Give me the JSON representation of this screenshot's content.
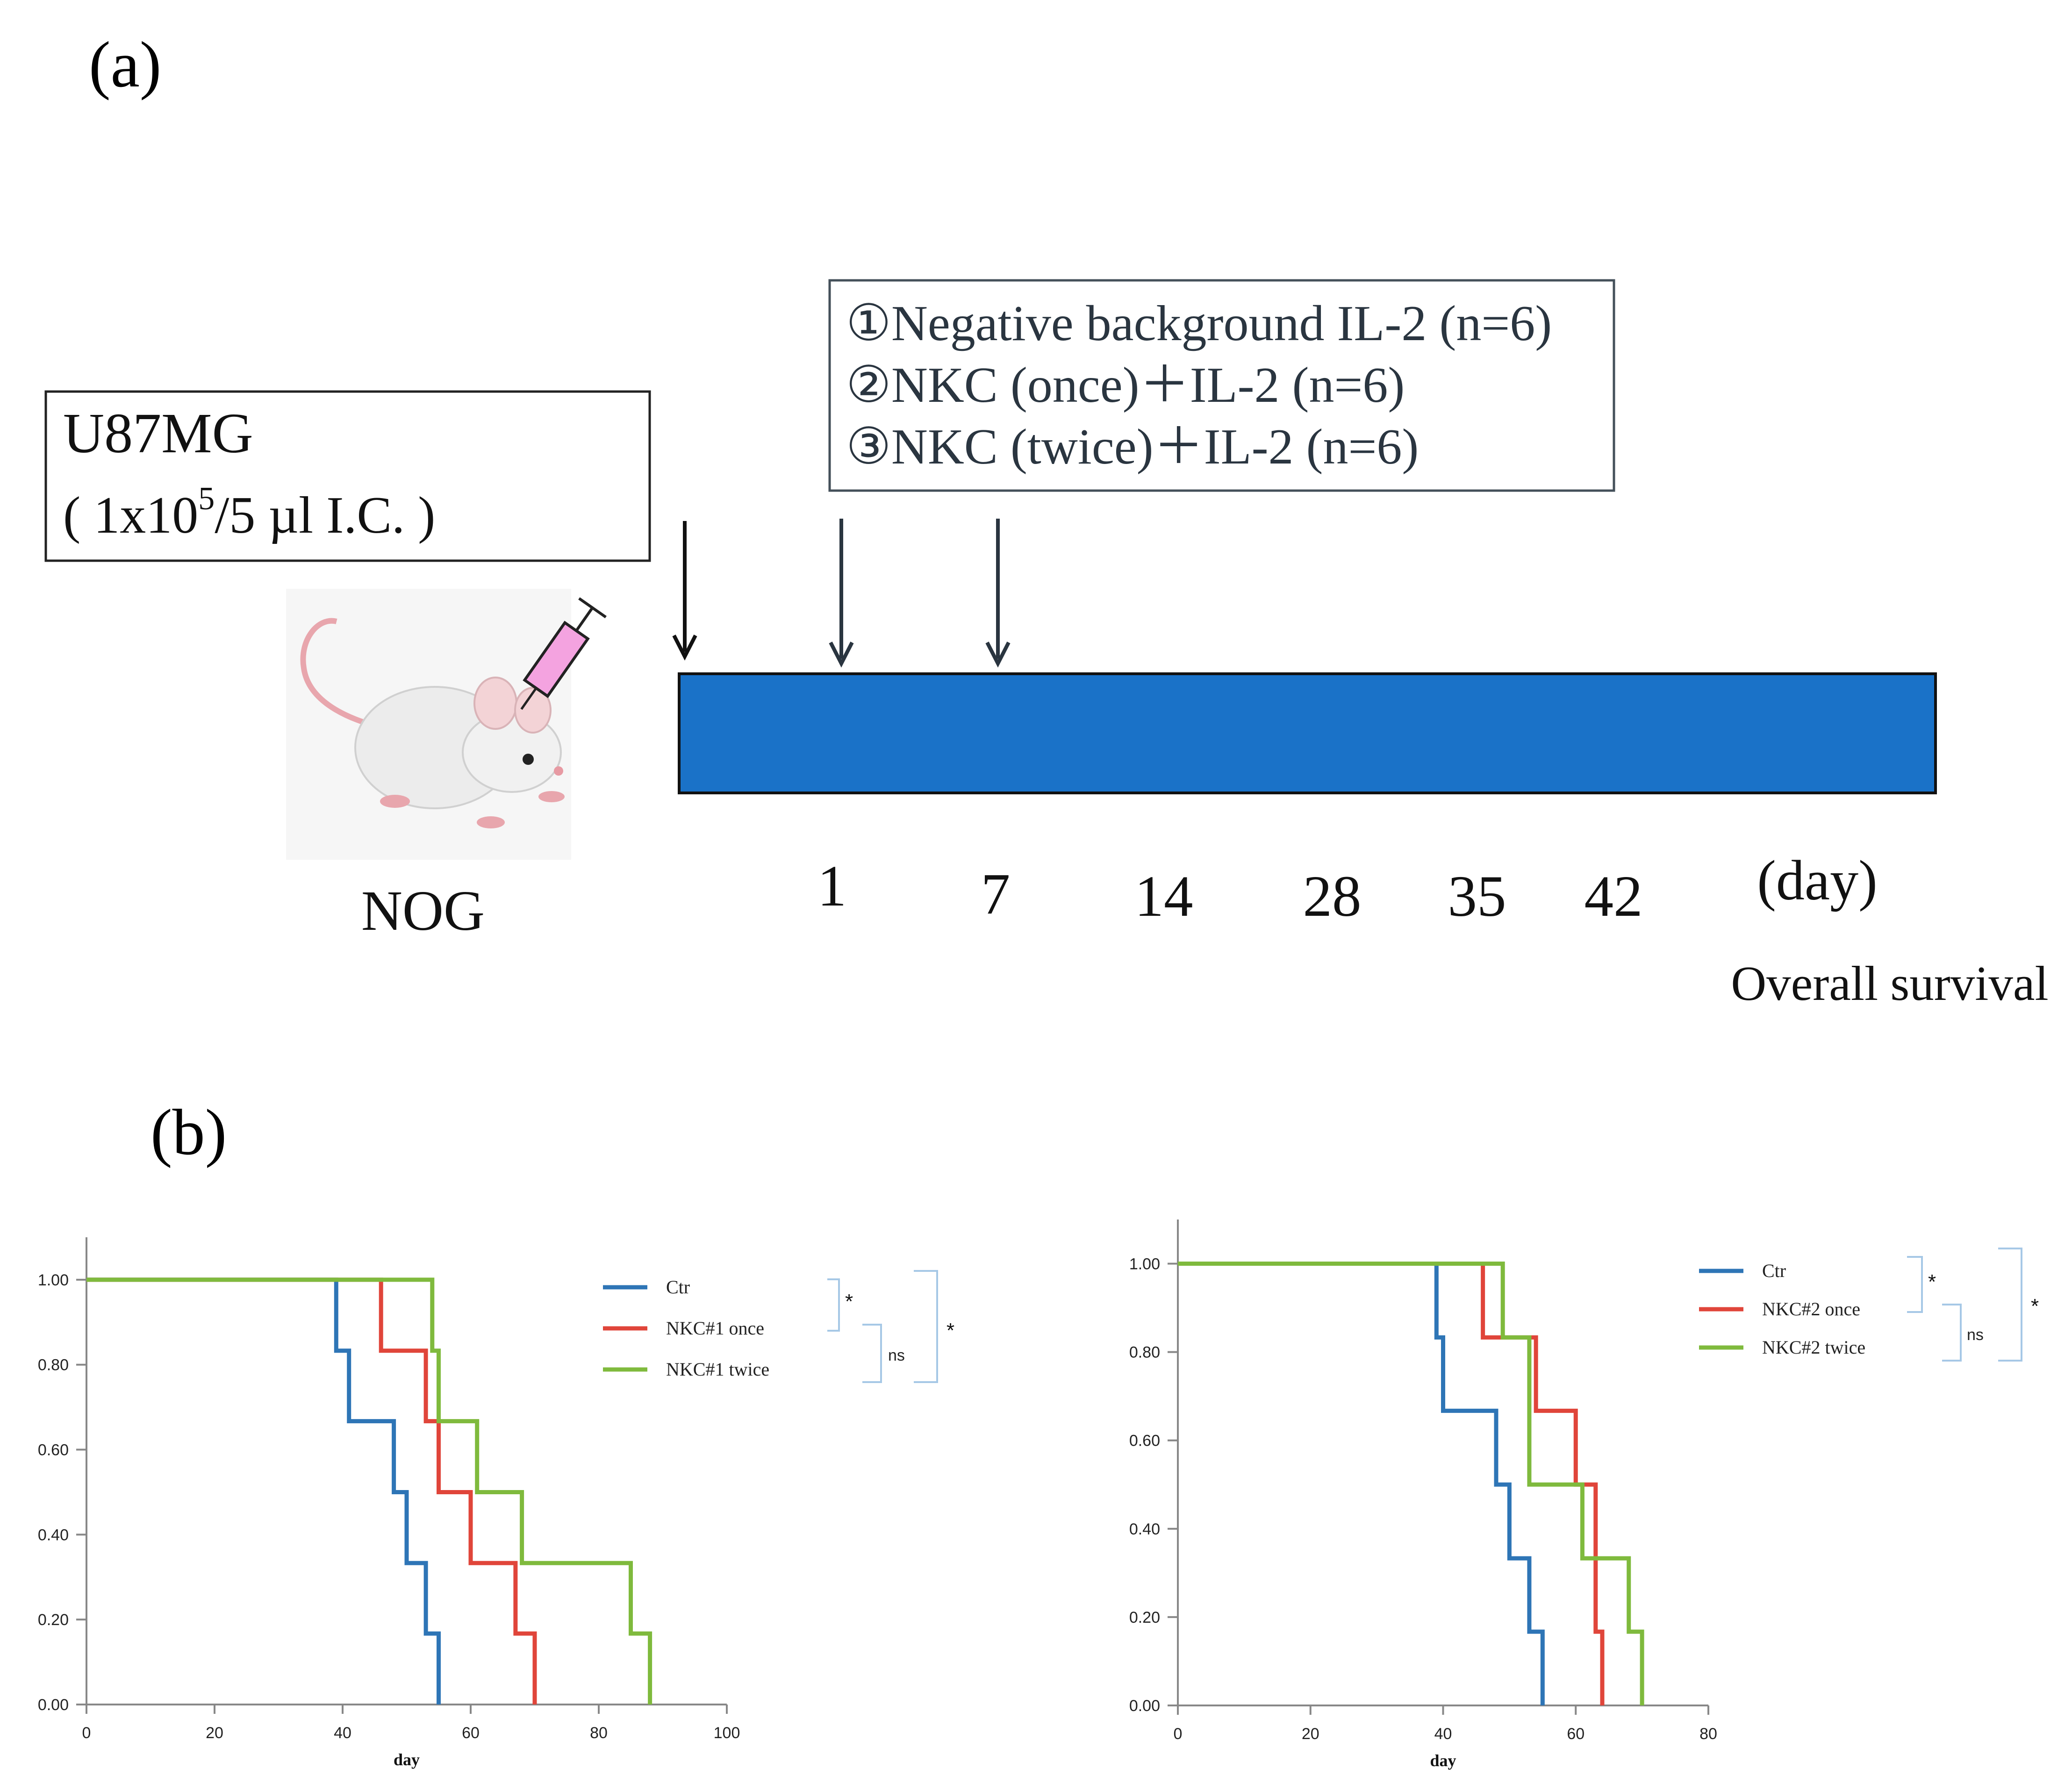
{
  "panel_a": {
    "label": "(a)",
    "cell_box": {
      "line1": "U87MG",
      "line2_prefix": "( 1x10",
      "line2_sup": "5",
      "line2_suffix": "/5 µl I.C. )"
    },
    "mouse_label": "NOG",
    "treatment_lines": [
      "①Negative background IL-2 (n=6)",
      "②NKC (once)＋IL-2 (n=6)",
      "③NKC (twice)＋IL-2 (n=6)"
    ],
    "day_ticks": [
      "1",
      "7",
      "14",
      "28",
      "35",
      "42"
    ],
    "day_unit": "(day)",
    "endpoint": "Overall survival",
    "timeline_color": "#1a72c8"
  },
  "panel_b": {
    "label": "(b)"
  },
  "chart_data": [
    {
      "type": "line",
      "step": true,
      "xlabel": "day",
      "ylabel": "",
      "xlim": [
        0,
        100
      ],
      "ylim": [
        0,
        1.1
      ],
      "xticks": [
        0,
        20,
        40,
        60,
        80,
        100
      ],
      "yticks": [
        0.0,
        0.2,
        0.4,
        0.6,
        0.8,
        1.0
      ],
      "xtick_labels": [
        "0",
        "20",
        "40",
        "60",
        "80",
        "100"
      ],
      "ytick_labels": [
        "0.00",
        "0.20",
        "0.40",
        "0.60",
        "0.80",
        "1.00"
      ],
      "grid": false,
      "legend_position": "top-right",
      "series": [
        {
          "name": "Ctr",
          "color": "#2e75b6",
          "x": [
            0,
            39,
            41,
            48,
            50,
            53,
            55
          ],
          "y": [
            1.0,
            0.833,
            0.667,
            0.5,
            0.333,
            0.167,
            0.0
          ]
        },
        {
          "name": "NKC#1 once",
          "color": "#e0453a",
          "x": [
            0,
            46,
            53,
            55,
            60,
            67,
            70
          ],
          "y": [
            1.0,
            0.833,
            0.667,
            0.5,
            0.333,
            0.167,
            0.0
          ]
        },
        {
          "name": "NKC#1 twice",
          "color": "#7fba3d",
          "x": [
            0,
            54,
            55,
            61,
            68,
            85,
            88
          ],
          "y": [
            1.0,
            0.833,
            0.667,
            0.5,
            0.333,
            0.167,
            0.0
          ]
        }
      ],
      "annotations": [
        {
          "text": "*",
          "between": [
            "Ctr",
            "NKC#1 once"
          ]
        },
        {
          "text": "ns",
          "between": [
            "NKC#1 once",
            "NKC#1 twice"
          ]
        },
        {
          "text": "*",
          "between": [
            "Ctr",
            "NKC#1 twice"
          ]
        }
      ]
    },
    {
      "type": "line",
      "step": true,
      "xlabel": "day",
      "ylabel": "",
      "xlim": [
        0,
        80
      ],
      "ylim": [
        0,
        1.1
      ],
      "xticks": [
        0,
        20,
        40,
        60,
        80
      ],
      "yticks": [
        0.0,
        0.2,
        0.4,
        0.6,
        0.8,
        1.0
      ],
      "xtick_labels": [
        "0",
        "20",
        "40",
        "60",
        "80"
      ],
      "ytick_labels": [
        "0.00",
        "0.20",
        "0.40",
        "0.60",
        "0.80",
        "1.00"
      ],
      "grid": false,
      "legend_position": "top-right",
      "series": [
        {
          "name": "Ctr",
          "color": "#2e75b6",
          "x": [
            0,
            39,
            40,
            48,
            50,
            53,
            55
          ],
          "y": [
            1.0,
            0.833,
            0.667,
            0.5,
            0.333,
            0.167,
            0.0
          ]
        },
        {
          "name": "NKC#2 once",
          "color": "#e0453a",
          "x": [
            0,
            46,
            54,
            60,
            63,
            64
          ],
          "y": [
            1.0,
            0.833,
            0.667,
            0.5,
            0.167,
            0.0
          ]
        },
        {
          "name": "NKC#2 twice",
          "color": "#7fba3d",
          "x": [
            0,
            49,
            53,
            61,
            68,
            70
          ],
          "y": [
            1.0,
            0.833,
            0.5,
            0.333,
            0.167,
            0.0
          ]
        }
      ],
      "annotations": [
        {
          "text": "*",
          "between": [
            "Ctr",
            "NKC#2 once"
          ]
        },
        {
          "text": "ns",
          "between": [
            "NKC#2 once",
            "NKC#2 twice"
          ]
        },
        {
          "text": "*",
          "between": [
            "Ctr",
            "NKC#2 twice"
          ]
        }
      ]
    }
  ]
}
